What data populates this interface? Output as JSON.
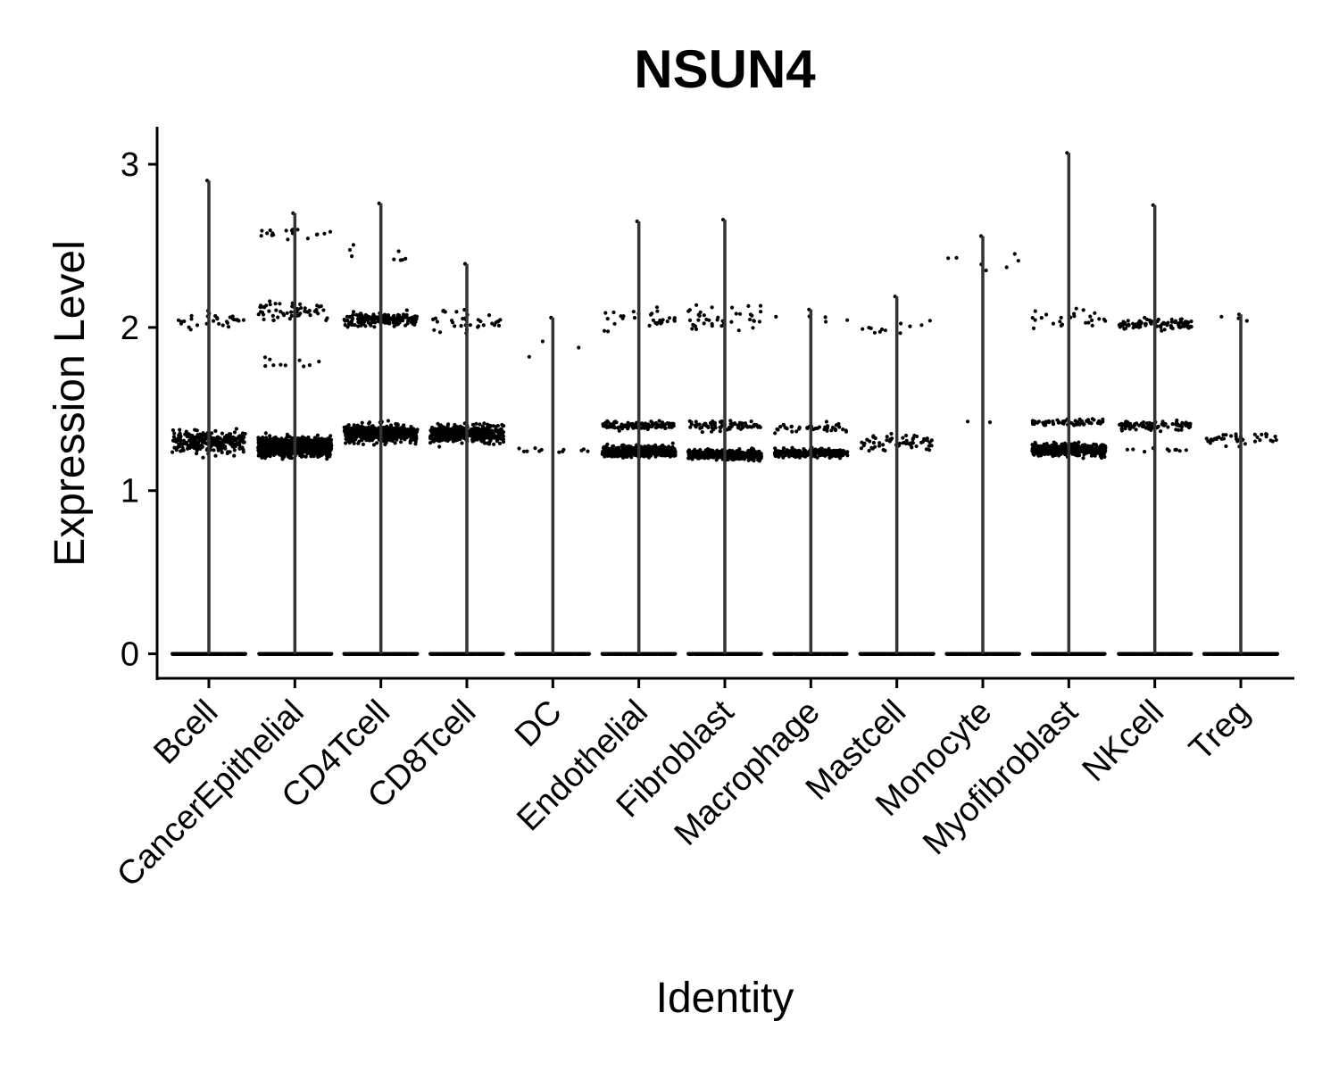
{
  "chart_data": {
    "type": "violin",
    "title": "NSUN4",
    "xlabel": "Identity",
    "ylabel": "Expression Level",
    "ylim": [
      -0.15,
      3.23
    ],
    "yticks": [
      0,
      1,
      2,
      3
    ],
    "categories": [
      "Bcell",
      "CancerEpithelial",
      "CD4Tcell",
      "CD8Tcell",
      "DC",
      "Endothelial",
      "Fibroblast",
      "Macrophage",
      "Mastcell",
      "Monocyte",
      "Myofibroblast",
      "NKcell",
      "Treg"
    ],
    "max_values": [
      2.9,
      2.7,
      2.76,
      2.39,
      2.06,
      2.65,
      2.66,
      2.11,
      2.19,
      2.56,
      3.07,
      2.75,
      2.08
    ],
    "clusters": [
      [
        {
          "center": 1.3,
          "spread": 0.13,
          "n": 260
        },
        {
          "center": 2.05,
          "spread": 0.13,
          "n": 30
        },
        {
          "center": 0,
          "spread": 0,
          "n": 400
        }
      ],
      [
        {
          "center": 1.27,
          "spread": 0.1,
          "n": 1200
        },
        {
          "center": 2.1,
          "spread": 0.1,
          "n": 60
        },
        {
          "center": 2.58,
          "spread": 0.06,
          "n": 20
        },
        {
          "center": 1.78,
          "spread": 0.05,
          "n": 10
        },
        {
          "center": 0,
          "spread": 0,
          "n": 400
        }
      ],
      [
        {
          "center": 1.35,
          "spread": 0.1,
          "n": 500
        },
        {
          "center": 2.05,
          "spread": 0.08,
          "n": 180
        },
        {
          "center": 2.45,
          "spread": 0.15,
          "n": 8
        },
        {
          "center": 0,
          "spread": 0,
          "n": 400
        }
      ],
      [
        {
          "center": 1.35,
          "spread": 0.1,
          "n": 450
        },
        {
          "center": 2.05,
          "spread": 0.12,
          "n": 35
        },
        {
          "center": 0,
          "spread": 0,
          "n": 400
        }
      ],
      [
        {
          "center": 1.25,
          "spread": 0.04,
          "n": 12
        },
        {
          "center": 1.9,
          "spread": 0.2,
          "n": 3
        },
        {
          "center": 0,
          "spread": 0,
          "n": 400
        }
      ],
      [
        {
          "center": 1.24,
          "spread": 0.06,
          "n": 500
        },
        {
          "center": 1.4,
          "spread": 0.05,
          "n": 120
        },
        {
          "center": 2.05,
          "spread": 0.12,
          "n": 30
        },
        {
          "center": 0,
          "spread": 0,
          "n": 400
        }
      ],
      [
        {
          "center": 1.22,
          "spread": 0.05,
          "n": 550
        },
        {
          "center": 1.4,
          "spread": 0.06,
          "n": 80
        },
        {
          "center": 2.05,
          "spread": 0.15,
          "n": 40
        },
        {
          "center": 0,
          "spread": 0,
          "n": 400
        }
      ],
      [
        {
          "center": 1.23,
          "spread": 0.05,
          "n": 230
        },
        {
          "center": 1.38,
          "spread": 0.06,
          "n": 40
        },
        {
          "center": 2.05,
          "spread": 0.05,
          "n": 5
        },
        {
          "center": 0,
          "spread": 0,
          "n": 400
        }
      ],
      [
        {
          "center": 1.3,
          "spread": 0.1,
          "n": 60
        },
        {
          "center": 2.0,
          "spread": 0.12,
          "n": 12
        },
        {
          "center": 0,
          "spread": 0,
          "n": 400
        }
      ],
      [
        {
          "center": 2.4,
          "spread": 0.2,
          "n": 7
        },
        {
          "center": 1.42,
          "spread": 0.02,
          "n": 2
        },
        {
          "center": 0,
          "spread": 0,
          "n": 400
        }
      ],
      [
        {
          "center": 1.25,
          "spread": 0.07,
          "n": 450
        },
        {
          "center": 1.42,
          "spread": 0.04,
          "n": 60
        },
        {
          "center": 2.05,
          "spread": 0.13,
          "n": 25
        },
        {
          "center": 0,
          "spread": 0,
          "n": 400
        }
      ],
      [
        {
          "center": 2.02,
          "spread": 0.06,
          "n": 90
        },
        {
          "center": 1.4,
          "spread": 0.06,
          "n": 90
        },
        {
          "center": 1.25,
          "spread": 0.04,
          "n": 10
        },
        {
          "center": 0,
          "spread": 0,
          "n": 400
        }
      ],
      [
        {
          "center": 1.32,
          "spread": 0.07,
          "n": 40
        },
        {
          "center": 2.05,
          "spread": 0.03,
          "n": 3
        },
        {
          "center": 0,
          "spread": 0,
          "n": 400
        }
      ]
    ]
  }
}
